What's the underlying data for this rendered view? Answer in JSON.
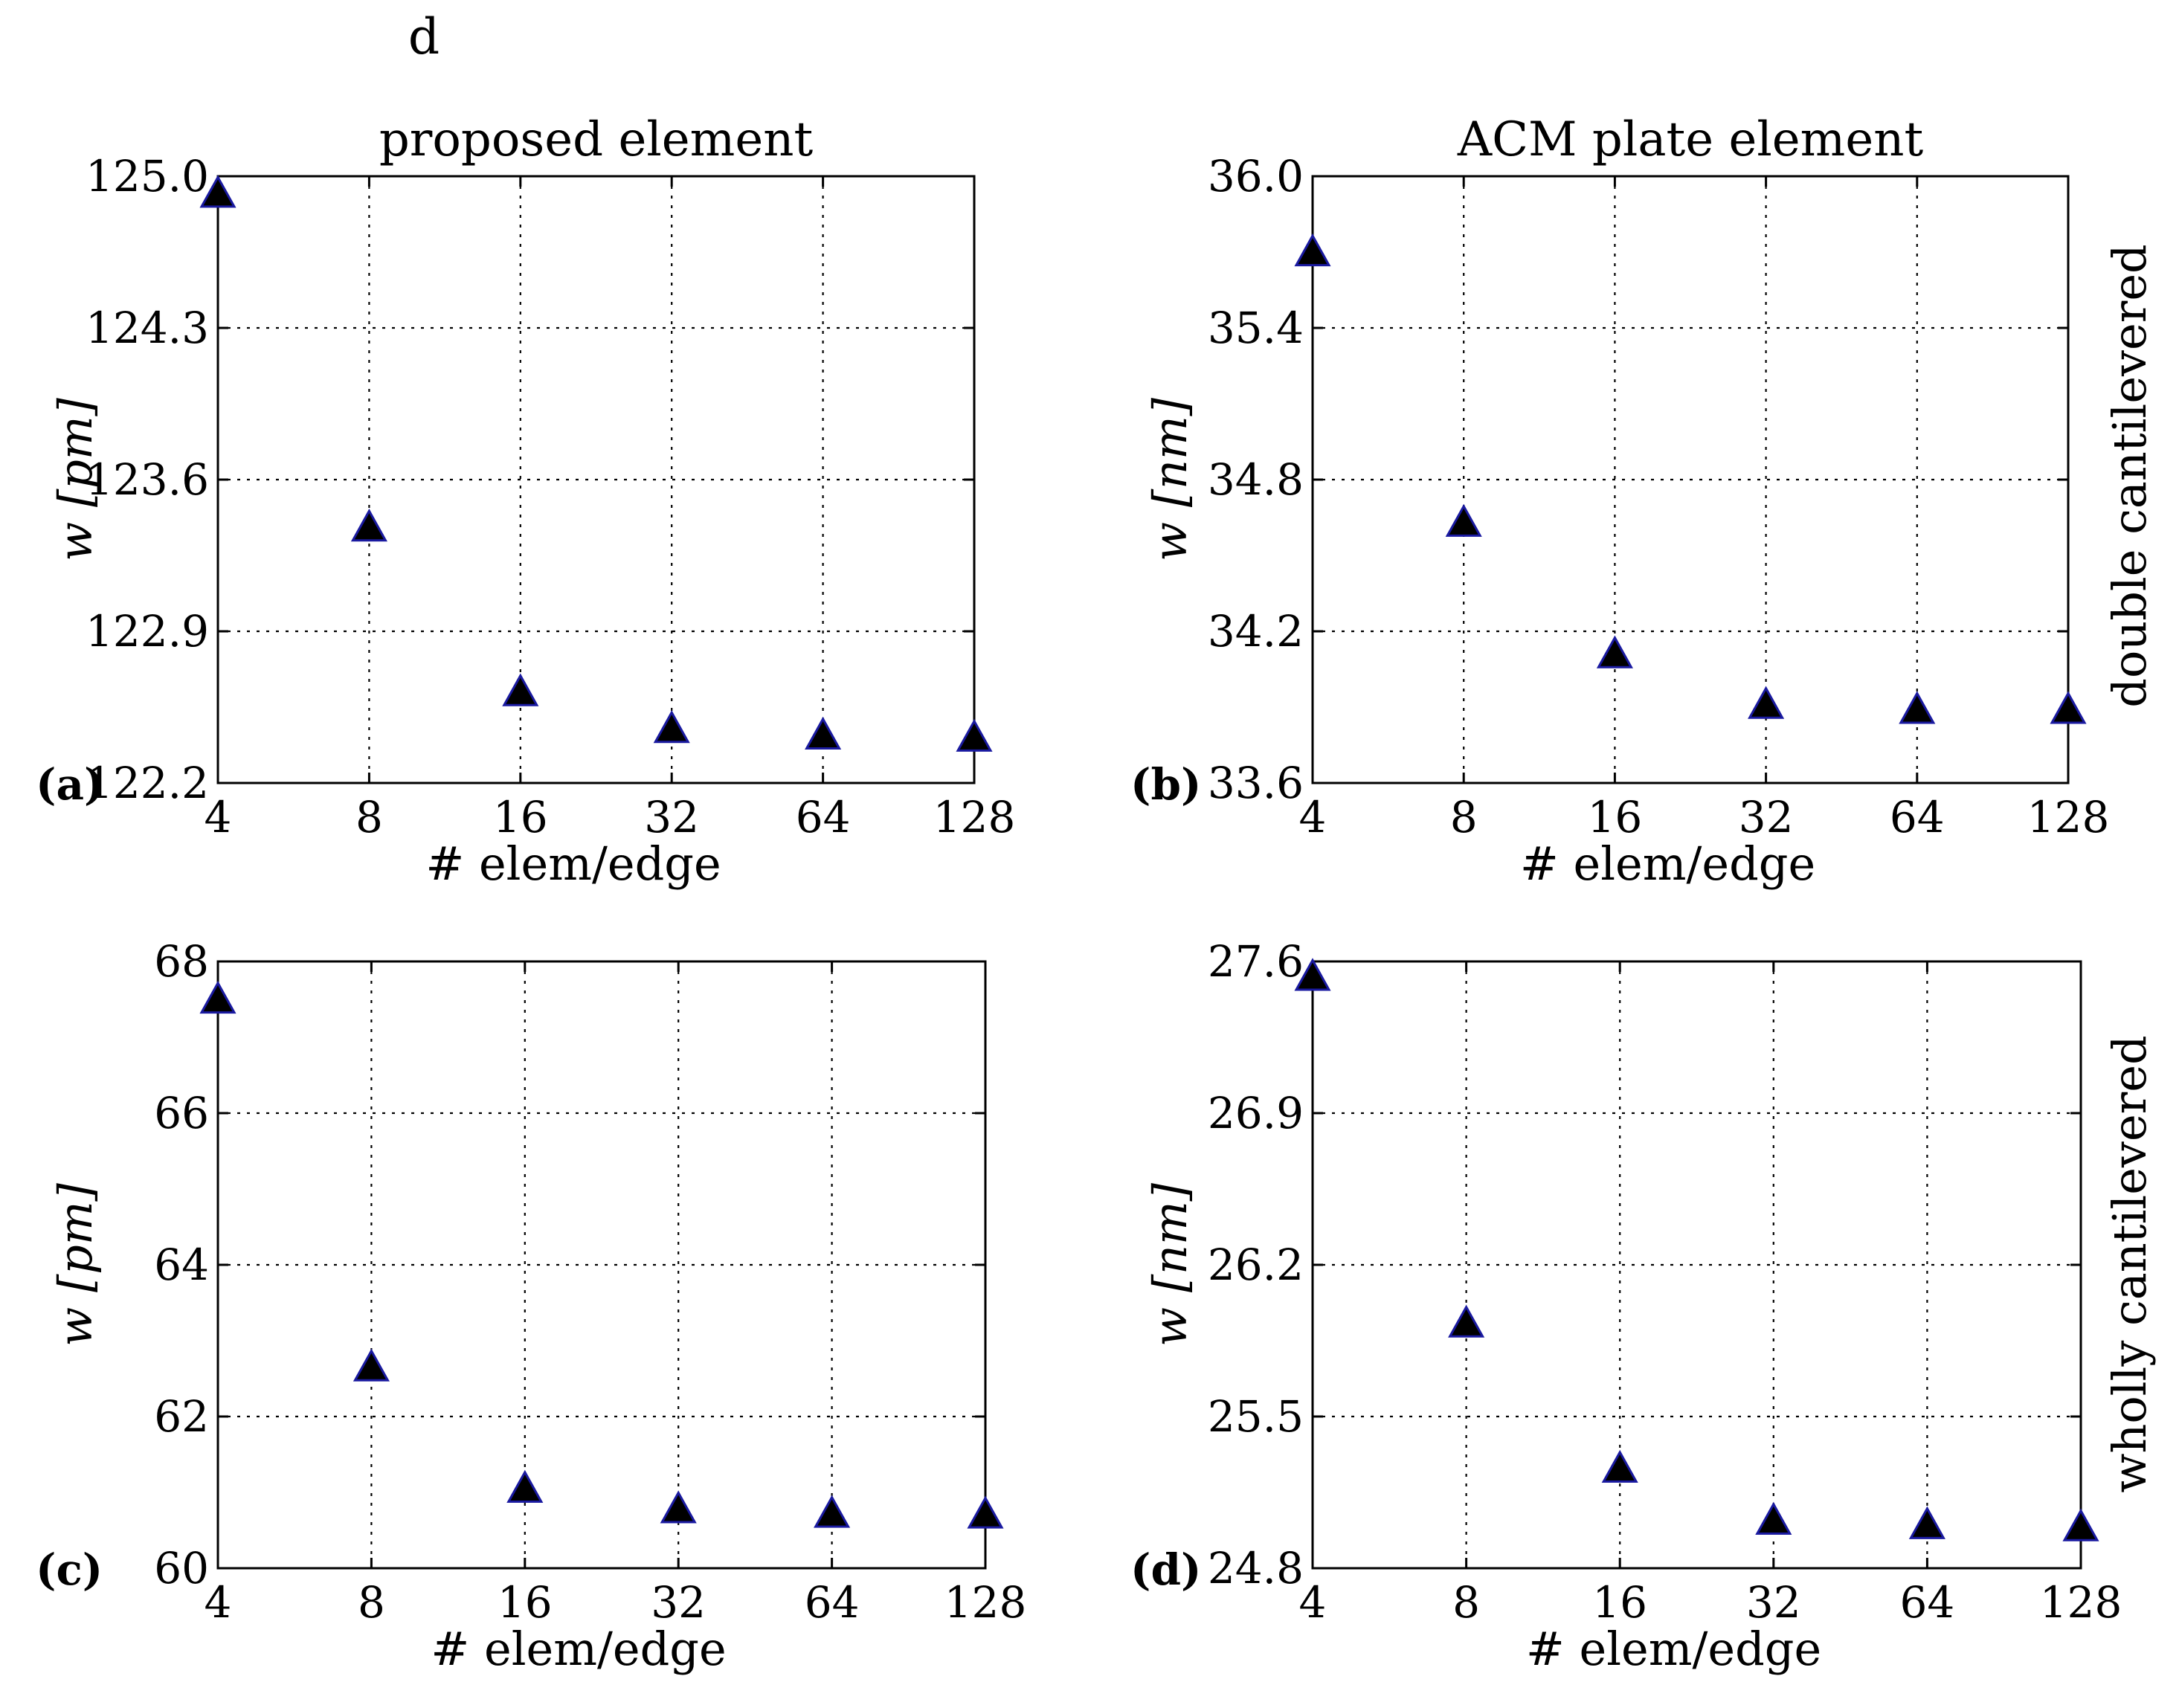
{
  "header": {
    "letter": "d"
  },
  "side_labels": {
    "top": "double cantilevered",
    "bottom": "wholly cantilevered"
  },
  "colors": {
    "marker_fill": "#000000",
    "marker_edge": "#1a1aa0",
    "grid": "#000000"
  },
  "chart_data": [
    {
      "id": "a",
      "type": "scatter",
      "panel_label": "(a)",
      "title": "proposed element",
      "xlabel": "# elem/edge",
      "ylabel": "w [pm]",
      "x_categories": [
        "4",
        "8",
        "16",
        "32",
        "64",
        "128"
      ],
      "y_ticks": [
        "122.2",
        "122.9",
        "123.6",
        "124.3",
        "125.0"
      ],
      "ylim": [
        122.2,
        125.0
      ],
      "grid": true,
      "marker": "triangle",
      "values": [
        124.92,
        123.38,
        122.62,
        122.45,
        122.42,
        122.41
      ]
    },
    {
      "id": "b",
      "type": "scatter",
      "panel_label": "(b)",
      "title": "ACM plate element",
      "xlabel": "# elem/edge",
      "ylabel": "w [nm]",
      "x_categories": [
        "4",
        "8",
        "16",
        "32",
        "64",
        "128"
      ],
      "y_ticks": [
        "33.6",
        "34.2",
        "34.8",
        "35.4",
        "36.0"
      ],
      "ylim": [
        33.6,
        36.0
      ],
      "grid": true,
      "marker": "triangle",
      "values": [
        35.7,
        34.63,
        34.11,
        33.91,
        33.89,
        33.89
      ]
    },
    {
      "id": "c",
      "type": "scatter",
      "panel_label": "(c)",
      "title": "",
      "xlabel": "# elem/edge",
      "ylabel": "w [pm]",
      "x_categories": [
        "4",
        "8",
        "16",
        "32",
        "64",
        "128"
      ],
      "y_ticks": [
        "60",
        "62",
        "64",
        "66",
        "68"
      ],
      "ylim": [
        60,
        68
      ],
      "grid": true,
      "marker": "triangle",
      "values": [
        67.5,
        62.65,
        61.05,
        60.78,
        60.72,
        60.71
      ]
    },
    {
      "id": "d",
      "type": "scatter",
      "panel_label": "(d)",
      "title": "",
      "xlabel": "# elem/edge",
      "ylabel": "w [nm]",
      "x_categories": [
        "4",
        "8",
        "16",
        "32",
        "64",
        "128"
      ],
      "y_ticks": [
        "24.8",
        "25.5",
        "26.2",
        "26.9",
        "27.6"
      ],
      "ylim": [
        24.8,
        27.6
      ],
      "grid": true,
      "marker": "triangle",
      "values": [
        27.53,
        25.93,
        25.26,
        25.02,
        25.0,
        24.99
      ]
    }
  ]
}
